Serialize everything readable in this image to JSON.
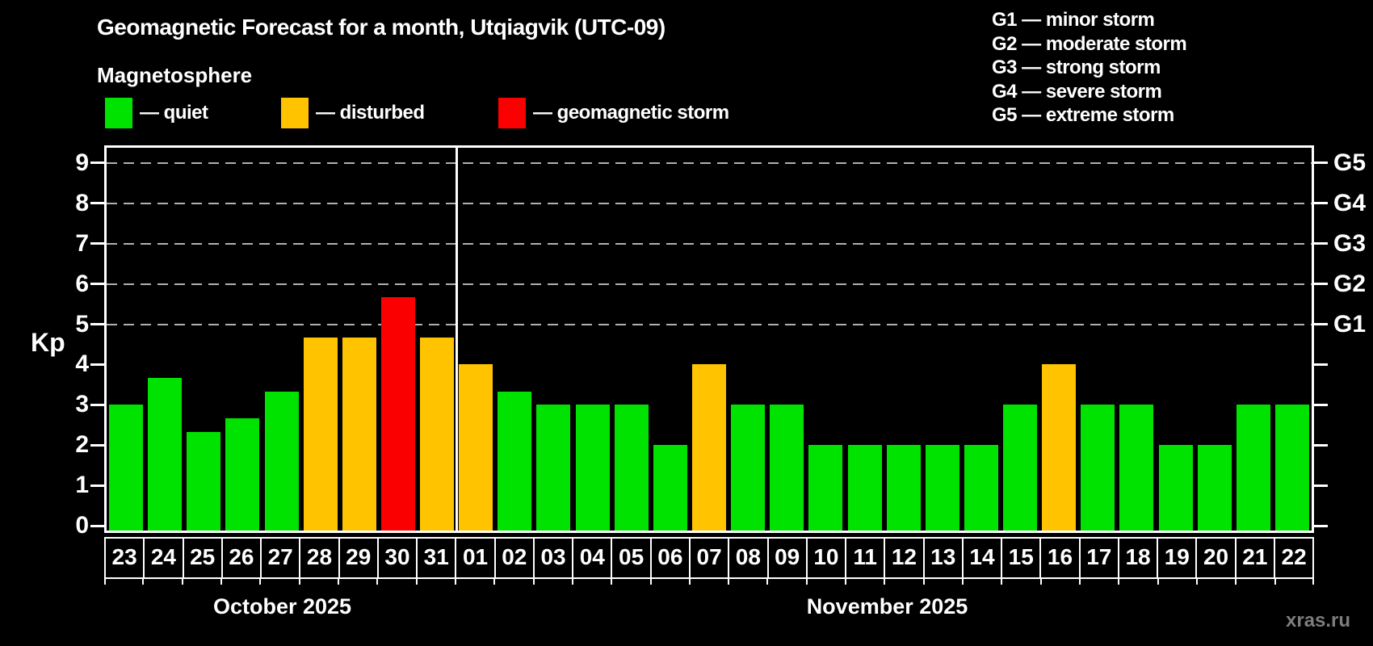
{
  "header": {
    "title": "Geomagnetic Forecast for a month, Utqiagvik (UTC-09)",
    "subtitle": "Magnetosphere"
  },
  "legend": {
    "items": [
      {
        "status": "quiet",
        "label": "— quiet"
      },
      {
        "status": "disturbed",
        "label": "— disturbed"
      },
      {
        "status": "storm",
        "label": "— geomagnetic storm"
      }
    ]
  },
  "g_legend": {
    "lines": [
      "G1 — minor storm",
      "G2 — moderate storm",
      "G3 — strong storm",
      "G4 — severe storm",
      "G5 — extreme storm"
    ]
  },
  "y_axis": {
    "label": "Kp",
    "ticks": [
      0,
      1,
      2,
      3,
      4,
      5,
      6,
      7,
      8,
      9
    ]
  },
  "months": [
    {
      "label": "October 2025"
    },
    {
      "label": "November 2025"
    }
  ],
  "watermark": "xras.ru",
  "colors": {
    "background": "#000000",
    "quiet": "#00e300",
    "disturbed": "#ffc300",
    "storm": "#fa0000",
    "grid": "#b0b0b0",
    "axis": "#ffffff",
    "watermark": "#7d7d7d"
  },
  "chart_data": {
    "type": "bar",
    "title": "Geomagnetic Forecast for a month, Utqiagvik (UTC-09)",
    "xlabel": "",
    "ylabel": "Kp",
    "ylim": [
      0,
      9.4
    ],
    "grid_on": true,
    "grid_kp": [
      5,
      6,
      7,
      8,
      9
    ],
    "right_axis": [
      {
        "kp": 5,
        "label": "G1"
      },
      {
        "kp": 6,
        "label": "G2"
      },
      {
        "kp": 7,
        "label": "G3"
      },
      {
        "kp": 8,
        "label": "G4"
      },
      {
        "kp": 9,
        "label": "G5"
      }
    ],
    "bars": [
      {
        "month": "October 2025",
        "day": "23",
        "kp": 3.0,
        "status": "quiet"
      },
      {
        "month": "October 2025",
        "day": "24",
        "kp": 3.67,
        "status": "quiet"
      },
      {
        "month": "October 2025",
        "day": "25",
        "kp": 2.33,
        "status": "quiet"
      },
      {
        "month": "October 2025",
        "day": "26",
        "kp": 2.67,
        "status": "quiet"
      },
      {
        "month": "October 2025",
        "day": "27",
        "kp": 3.33,
        "status": "quiet"
      },
      {
        "month": "October 2025",
        "day": "28",
        "kp": 4.67,
        "status": "disturbed"
      },
      {
        "month": "October 2025",
        "day": "29",
        "kp": 4.67,
        "status": "disturbed"
      },
      {
        "month": "October 2025",
        "day": "30",
        "kp": 5.67,
        "status": "storm"
      },
      {
        "month": "October 2025",
        "day": "31",
        "kp": 4.67,
        "status": "disturbed"
      },
      {
        "month": "November 2025",
        "day": "01",
        "kp": 4.0,
        "status": "disturbed"
      },
      {
        "month": "November 2025",
        "day": "02",
        "kp": 3.33,
        "status": "quiet"
      },
      {
        "month": "November 2025",
        "day": "03",
        "kp": 3.0,
        "status": "quiet"
      },
      {
        "month": "November 2025",
        "day": "04",
        "kp": 3.0,
        "status": "quiet"
      },
      {
        "month": "November 2025",
        "day": "05",
        "kp": 3.0,
        "status": "quiet"
      },
      {
        "month": "November 2025",
        "day": "06",
        "kp": 2.0,
        "status": "quiet"
      },
      {
        "month": "November 2025",
        "day": "07",
        "kp": 4.0,
        "status": "disturbed"
      },
      {
        "month": "November 2025",
        "day": "08",
        "kp": 3.0,
        "status": "quiet"
      },
      {
        "month": "November 2025",
        "day": "09",
        "kp": 3.0,
        "status": "quiet"
      },
      {
        "month": "November 2025",
        "day": "10",
        "kp": 2.0,
        "status": "quiet"
      },
      {
        "month": "November 2025",
        "day": "11",
        "kp": 2.0,
        "status": "quiet"
      },
      {
        "month": "November 2025",
        "day": "12",
        "kp": 2.0,
        "status": "quiet"
      },
      {
        "month": "November 2025",
        "day": "13",
        "kp": 2.0,
        "status": "quiet"
      },
      {
        "month": "November 2025",
        "day": "14",
        "kp": 2.0,
        "status": "quiet"
      },
      {
        "month": "November 2025",
        "day": "15",
        "kp": 3.0,
        "status": "quiet"
      },
      {
        "month": "November 2025",
        "day": "16",
        "kp": 4.0,
        "status": "disturbed"
      },
      {
        "month": "November 2025",
        "day": "17",
        "kp": 3.0,
        "status": "quiet"
      },
      {
        "month": "November 2025",
        "day": "18",
        "kp": 3.0,
        "status": "quiet"
      },
      {
        "month": "November 2025",
        "day": "19",
        "kp": 2.0,
        "status": "quiet"
      },
      {
        "month": "November 2025",
        "day": "20",
        "kp": 2.0,
        "status": "quiet"
      },
      {
        "month": "November 2025",
        "day": "21",
        "kp": 3.0,
        "status": "quiet"
      },
      {
        "month": "November 2025",
        "day": "22",
        "kp": 3.0,
        "status": "quiet"
      }
    ]
  }
}
